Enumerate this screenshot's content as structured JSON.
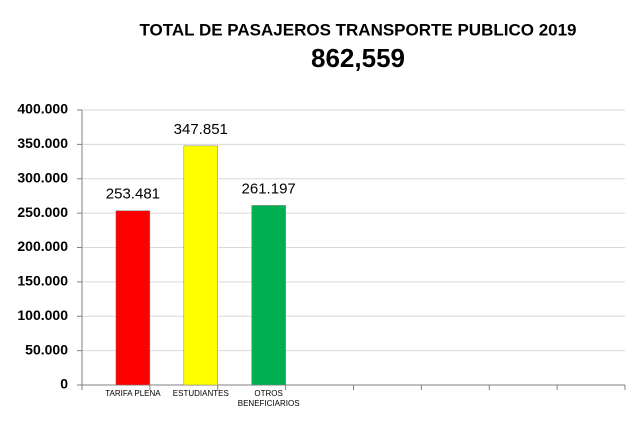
{
  "chart_data": {
    "type": "bar",
    "title": "TOTAL DE PASAJEROS TRANSPORTE PUBLICO  2019",
    "subtitle": "862,559",
    "categories": [
      "TARIFA PLENA",
      "ESTUDIANTES",
      "OTROS BENEFICIARIOS",
      null,
      null,
      null,
      null,
      null
    ],
    "values": [
      253481,
      347851,
      261197,
      null,
      null,
      null,
      null,
      null
    ],
    "value_labels": [
      "253.481",
      "347.851",
      "261.197",
      null,
      null,
      null,
      null,
      null
    ],
    "colors": [
      "#ff0000",
      "#ffff00",
      "#00b050",
      null,
      null,
      null,
      null,
      null
    ],
    "ylim": [
      0,
      400000
    ],
    "yticks": [
      0,
      {
        "value": 50000,
        "label": "50.000"
      },
      {
        "value": 100000,
        "label": "100.000"
      },
      {
        "value": 150000,
        "label": "150.000"
      },
      {
        "value": 200000,
        "label": "200.000"
      },
      {
        "value": 250000,
        "label": "250.000"
      },
      {
        "value": 300000,
        "label": "300.000"
      },
      {
        "value": 350000,
        "label": "350.000"
      },
      {
        "value": 400000,
        "label": "400.000"
      }
    ],
    "grid": true
  }
}
